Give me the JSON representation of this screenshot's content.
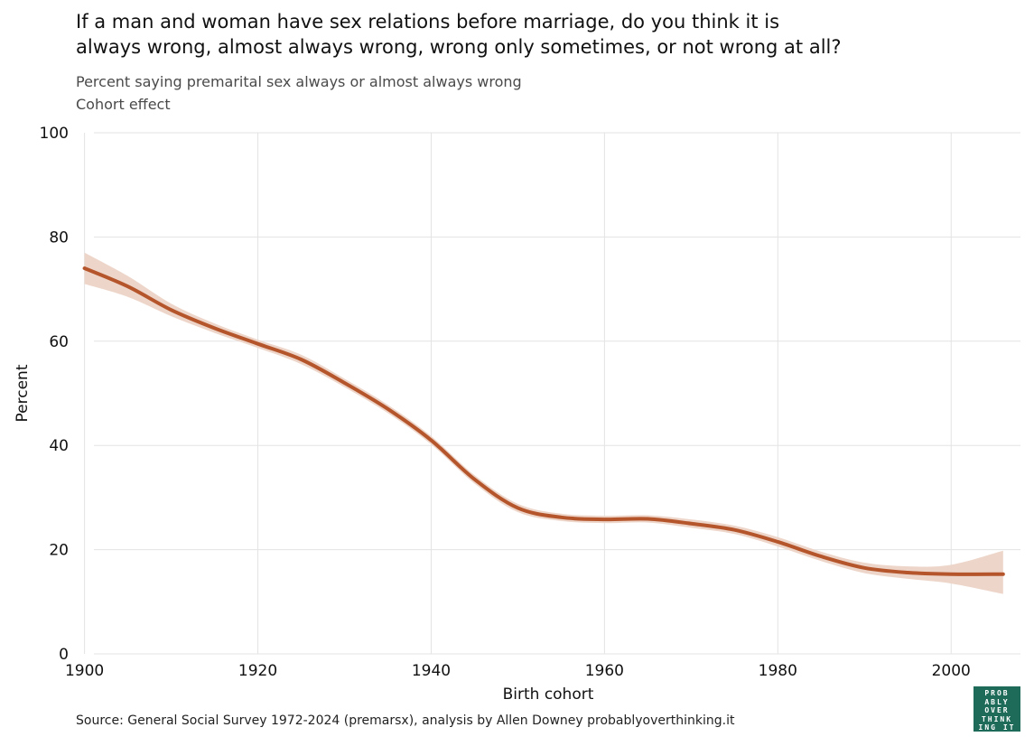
{
  "header": {
    "title": "If a man and woman have sex relations before marriage, do you think it is\nalways wrong, almost always wrong, wrong only sometimes, or not wrong at all?",
    "subtitle_line1": "Percent saying premarital sex always or almost always wrong",
    "subtitle_line2": "Cohort effect"
  },
  "footer": {
    "source": "Source: General Social Survey 1972-2024 (premarsx), analysis by Allen Downey probablyoverthinking.it"
  },
  "logo": {
    "lines": [
      "PROB",
      "ABLY",
      "OVER",
      "THINK",
      "ING IT"
    ],
    "color": "#1f6b5a"
  },
  "chart_data": {
    "type": "line",
    "xlabel": "Birth cohort",
    "ylabel": "Percent",
    "xlim": [
      1899,
      2008
    ],
    "ylim": [
      0,
      100
    ],
    "x_ticks": [
      1900,
      1920,
      1940,
      1960,
      1980,
      2000
    ],
    "y_ticks": [
      0,
      20,
      40,
      60,
      80,
      100
    ],
    "grid": true,
    "line_color": "#b5552b",
    "band_color": "#ecd3c6",
    "series": [
      {
        "x": [
          1900,
          1905,
          1910,
          1915,
          1920,
          1925,
          1930,
          1935,
          1940,
          1945,
          1950,
          1955,
          1960,
          1965,
          1970,
          1975,
          1980,
          1985,
          1990,
          1995,
          2000,
          2006
        ],
        "y": [
          74,
          70.5,
          66,
          62.5,
          59.5,
          56.5,
          52,
          47,
          41,
          33.5,
          28,
          26.2,
          25.8,
          25.9,
          25,
          23.8,
          21.5,
          18.7,
          16.5,
          15.6,
          15.3,
          15.3
        ],
        "lower": [
          71,
          68.5,
          64.8,
          61.6,
          58.7,
          55.6,
          51.2,
          46.2,
          40.2,
          32.7,
          27.2,
          25.5,
          25.1,
          25.2,
          24.2,
          23,
          20.6,
          17.8,
          15.5,
          14.4,
          13.5,
          11.5
        ],
        "upper": [
          77,
          72.5,
          67.2,
          63.4,
          60.3,
          57.4,
          52.8,
          47.8,
          41.8,
          34.3,
          28.8,
          26.9,
          26.5,
          26.6,
          25.8,
          24.6,
          22.4,
          19.6,
          17.5,
          16.8,
          17.1,
          19.8
        ]
      }
    ]
  }
}
